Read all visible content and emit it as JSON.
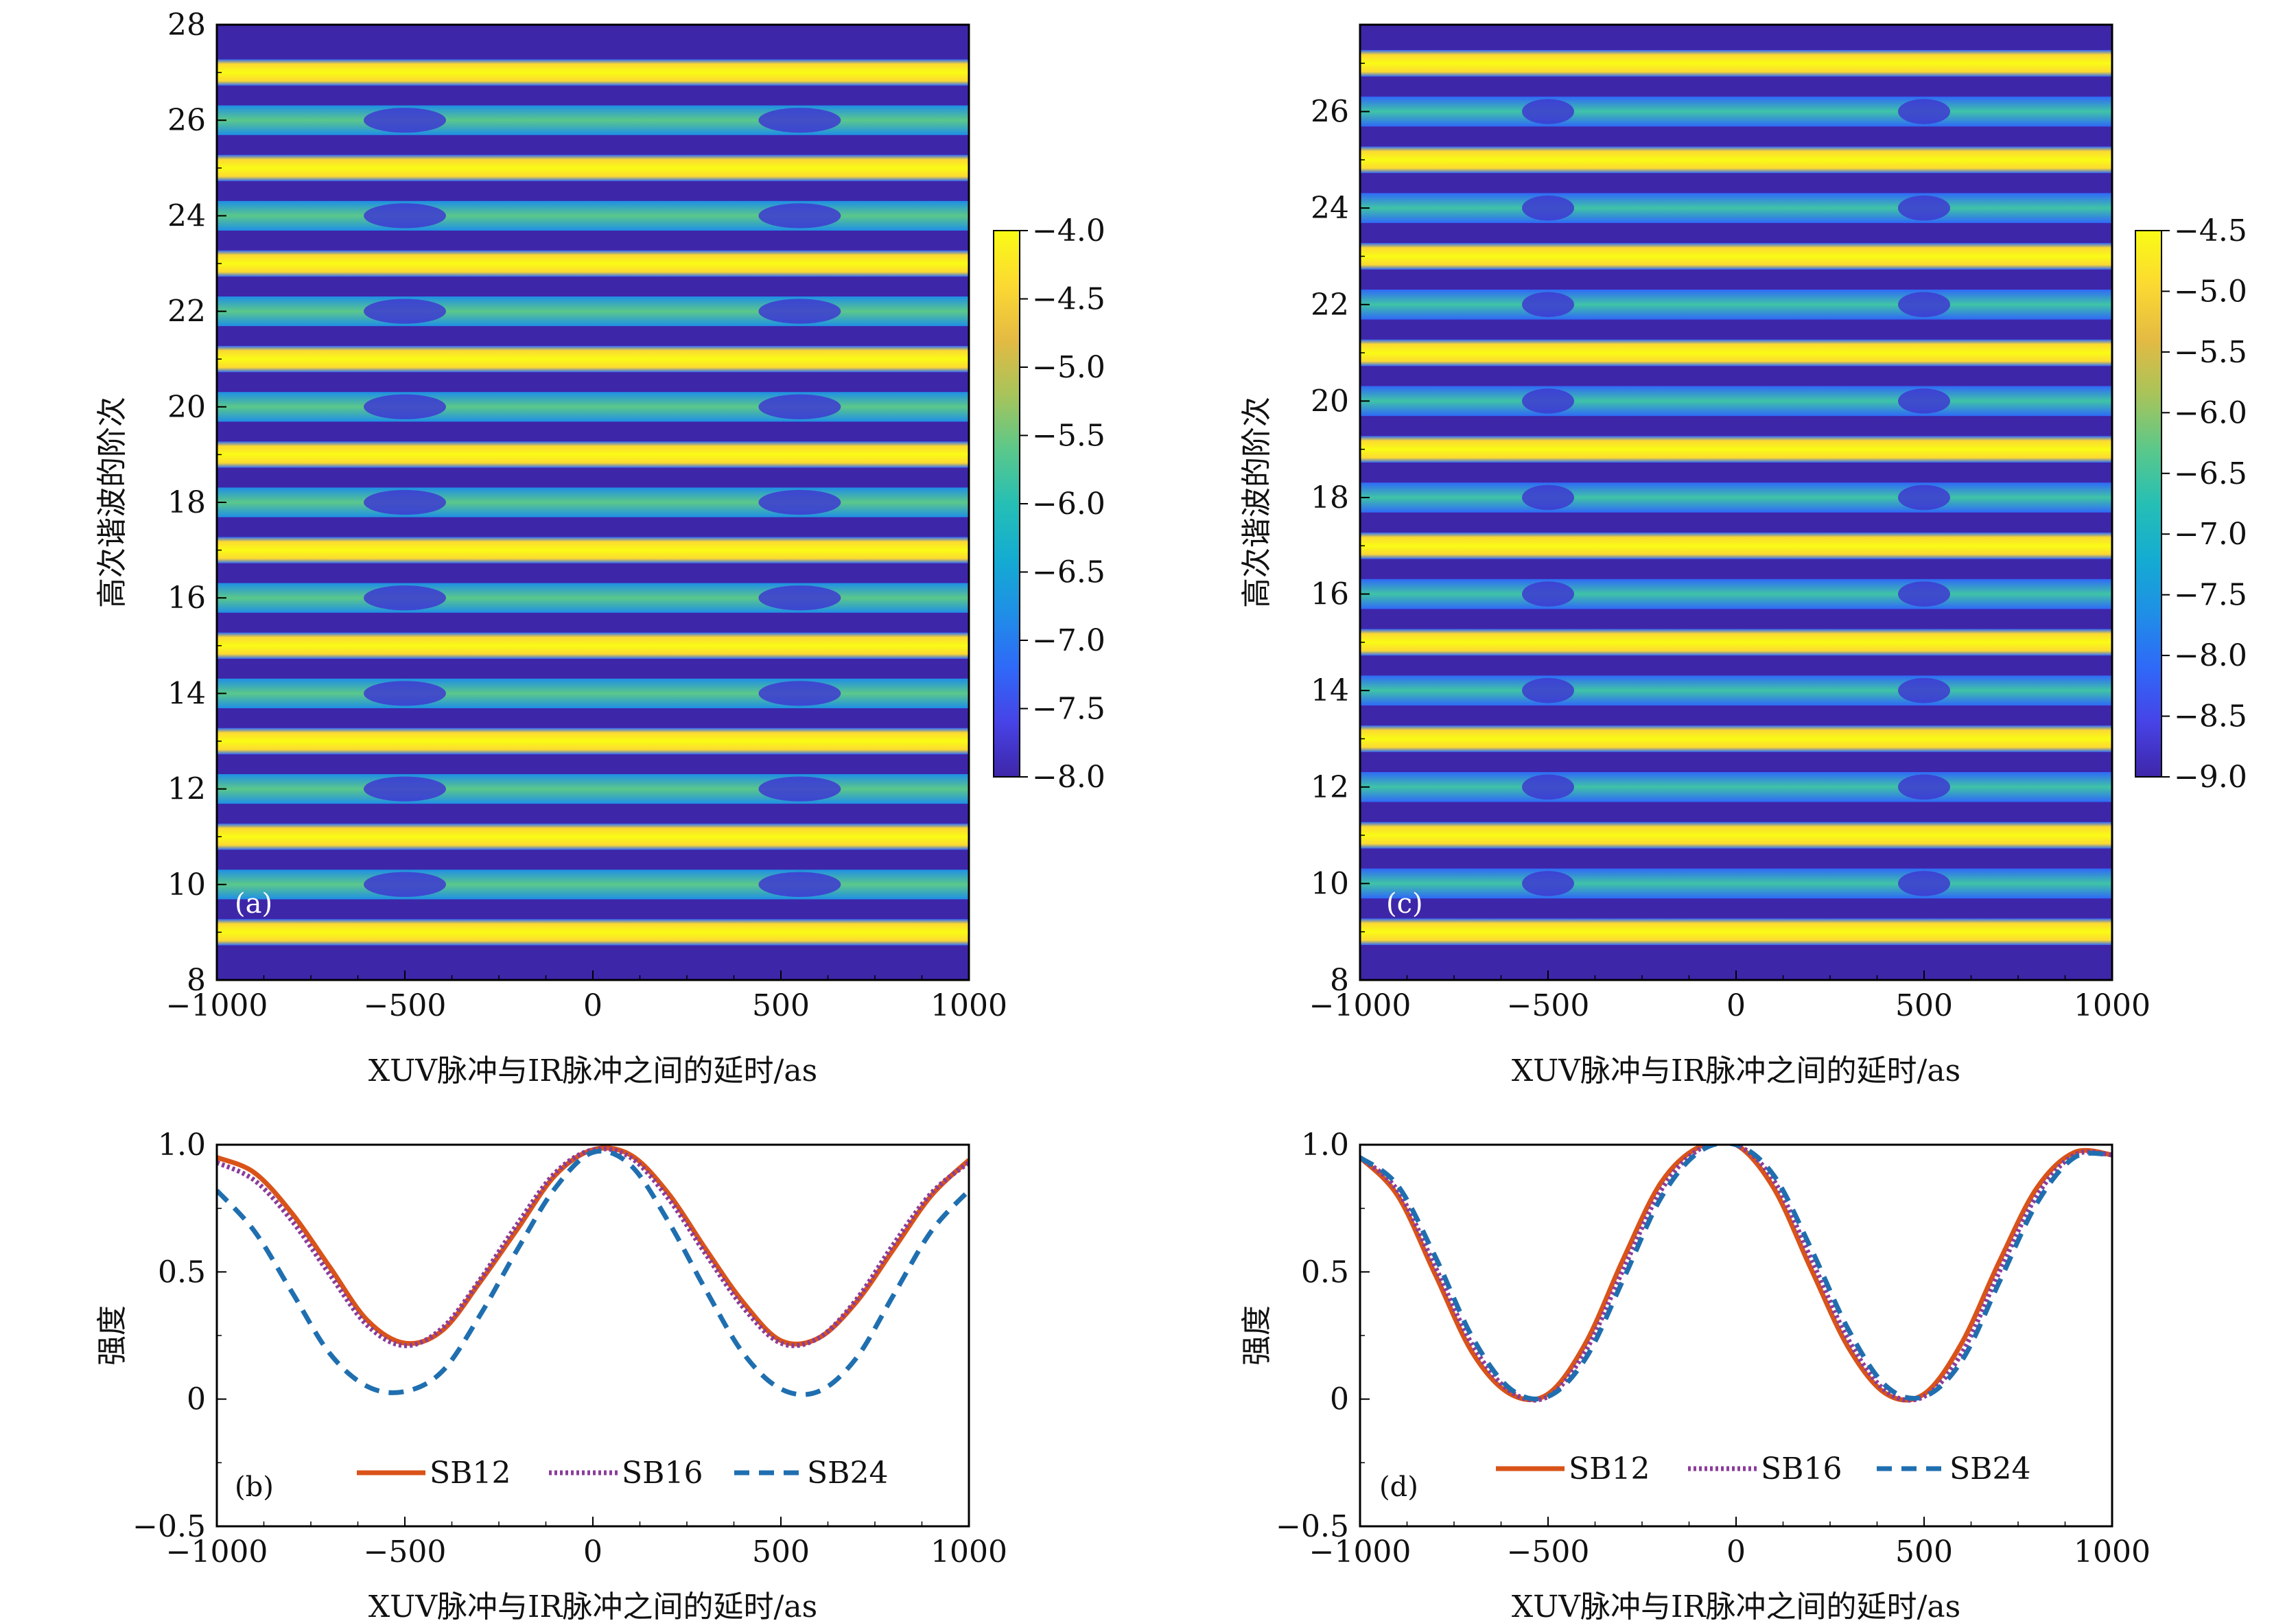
{
  "colormap": [
    "#3e26a8",
    "#4743e7",
    "#2f69f8",
    "#1f8fe6",
    "#14acd1",
    "#26bfb5",
    "#5bc88a",
    "#a8c45a",
    "#e4ba43",
    "#fcd932",
    "#f9fb15"
  ],
  "series_colors": {
    "SB12": "#d95319",
    "SB16": "#8b3d9b",
    "SB24": "#1f6fb0"
  },
  "panels": {
    "a": {
      "label": "(a)",
      "xlabel": "XUV脉冲与IR脉冲之间的延时/as",
      "ylabel": "高次谐波的阶次",
      "xticks": [
        "−1000",
        "−500",
        "0",
        "500",
        "1000"
      ],
      "yticks": [
        "8",
        "10",
        "12",
        "14",
        "16",
        "18",
        "20",
        "22",
        "24",
        "26",
        "28"
      ],
      "colorbar_ticks": [
        "−4.0",
        "−4.5",
        "−5.0",
        "−5.5",
        "−6.0",
        "−6.5",
        "−7.0",
        "−7.5",
        "−8.0"
      ]
    },
    "c": {
      "label": "(c)",
      "xlabel": "XUV脉冲与IR脉冲之间的延时/as",
      "ylabel": "高次谐波的阶次",
      "xticks": [
        "−1000",
        "−500",
        "0",
        "500",
        "1000"
      ],
      "yticks": [
        "8",
        "10",
        "12",
        "14",
        "16",
        "18",
        "20",
        "22",
        "24",
        "26"
      ],
      "colorbar_ticks": [
        "−4.5",
        "−5.0",
        "−5.5",
        "−6.0",
        "−6.5",
        "−7.0",
        "−7.5",
        "−8.0",
        "−8.5",
        "−9.0"
      ]
    },
    "b": {
      "label": "(b)",
      "xlabel": "XUV脉冲与IR脉冲之间的延时/as",
      "ylabel": "强度",
      "xticks": [
        "−1000",
        "−500",
        "0",
        "500",
        "1000"
      ],
      "yticks": [
        "1.0",
        "0.5",
        "0",
        "−0.5"
      ],
      "legend": [
        "SB12",
        "SB16",
        "SB24"
      ]
    },
    "d": {
      "label": "(d)",
      "xlabel": "XUV脉冲与IR脉冲之间的延时/as",
      "ylabel": "强度",
      "xticks": [
        "−1000",
        "−500",
        "0",
        "500",
        "1000"
      ],
      "yticks": [
        "1.0",
        "0.5",
        "0",
        "−0.5"
      ],
      "legend": [
        "SB12",
        "SB16",
        "SB24"
      ]
    }
  },
  "chart_data": [
    {
      "type": "heatmap",
      "panel": "a",
      "xlim": [
        -1000,
        1000
      ],
      "ylim": [
        8,
        28
      ],
      "clim": [
        -8.0,
        -4.0
      ],
      "description_bands": "odd harmonic orders 9-27 bright (~ -4.0); even sideband orders 10-26 intermediate with delay modulation; dark background in between",
      "bright_orders": [
        9,
        11,
        13,
        15,
        17,
        19,
        21,
        23,
        25,
        27
      ],
      "sideband_orders": [
        10,
        12,
        14,
        16,
        18,
        20,
        22,
        24,
        26
      ],
      "sideband_dip_delays": [
        -500,
        550
      ]
    },
    {
      "type": "heatmap",
      "panel": "c",
      "xlim": [
        -1000,
        1000
      ],
      "ylim": [
        8,
        27.8
      ],
      "clim": [
        -9.0,
        -4.5
      ],
      "bright_orders": [
        9,
        11,
        13,
        15,
        17,
        19,
        21,
        23,
        25,
        27
      ],
      "sideband_orders": [
        10,
        12,
        14,
        16,
        18,
        20,
        22,
        24,
        26
      ],
      "sideband_dip_delays": [
        -500,
        500
      ]
    },
    {
      "type": "line",
      "panel": "b",
      "xlim": [
        -1000,
        1000
      ],
      "ylim": [
        -0.5,
        1.0
      ],
      "x": [
        -1000,
        -900,
        -800,
        -700,
        -600,
        -500,
        -400,
        -300,
        -200,
        -100,
        0,
        100,
        200,
        300,
        400,
        500,
        600,
        700,
        800,
        900,
        1000
      ],
      "series": [
        {
          "name": "SB12",
          "values": [
            0.95,
            0.89,
            0.73,
            0.52,
            0.31,
            0.22,
            0.27,
            0.46,
            0.67,
            0.88,
            0.98,
            0.96,
            0.81,
            0.59,
            0.38,
            0.23,
            0.24,
            0.38,
            0.59,
            0.8,
            0.94
          ]
        },
        {
          "name": "SB16",
          "values": [
            0.93,
            0.86,
            0.7,
            0.49,
            0.29,
            0.21,
            0.28,
            0.47,
            0.69,
            0.89,
            0.98,
            0.95,
            0.79,
            0.57,
            0.36,
            0.22,
            0.24,
            0.39,
            0.61,
            0.81,
            0.93
          ]
        },
        {
          "name": "SB24",
          "values": [
            0.82,
            0.66,
            0.42,
            0.18,
            0.05,
            0.03,
            0.11,
            0.33,
            0.59,
            0.83,
            0.97,
            0.92,
            0.7,
            0.43,
            0.18,
            0.04,
            0.03,
            0.16,
            0.41,
            0.66,
            0.82
          ]
        }
      ]
    },
    {
      "type": "line",
      "panel": "d",
      "xlim": [
        -1000,
        1000
      ],
      "ylim": [
        -0.5,
        1.0
      ],
      "x": [
        -1000,
        -900,
        -800,
        -700,
        -600,
        -500,
        -400,
        -300,
        -200,
        -100,
        0,
        100,
        200,
        300,
        400,
        500,
        600,
        700,
        800,
        900,
        1000
      ],
      "series": [
        {
          "name": "SB12",
          "values": [
            0.95,
            0.8,
            0.49,
            0.18,
            0.02,
            0.02,
            0.22,
            0.55,
            0.85,
            0.99,
            1.0,
            0.83,
            0.51,
            0.2,
            0.02,
            0.02,
            0.22,
            0.54,
            0.83,
            0.97,
            0.96
          ]
        },
        {
          "name": "SB16",
          "values": [
            0.95,
            0.82,
            0.52,
            0.21,
            0.03,
            0.01,
            0.19,
            0.51,
            0.82,
            0.98,
            1.0,
            0.86,
            0.55,
            0.23,
            0.03,
            0.01,
            0.18,
            0.5,
            0.8,
            0.96,
            0.96
          ]
        },
        {
          "name": "SB24",
          "values": [
            0.95,
            0.84,
            0.56,
            0.24,
            0.04,
            0.01,
            0.16,
            0.47,
            0.79,
            0.97,
            1.0,
            0.88,
            0.59,
            0.27,
            0.05,
            0.01,
            0.15,
            0.46,
            0.77,
            0.95,
            0.96
          ]
        }
      ]
    }
  ]
}
